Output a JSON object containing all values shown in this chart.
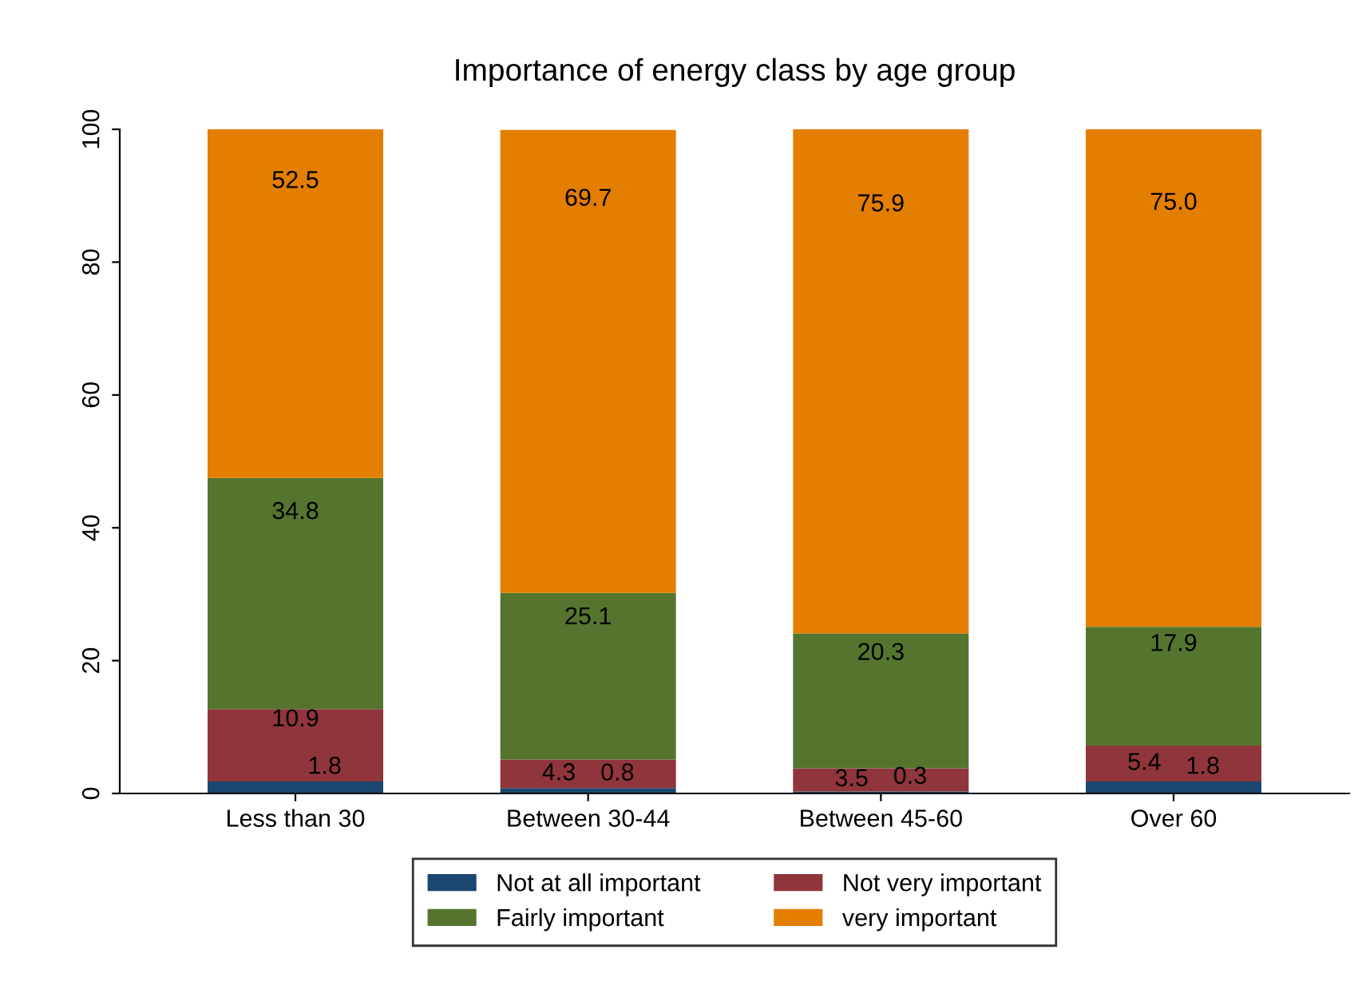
{
  "chart_data": {
    "type": "bar",
    "stacked": true,
    "title": "Importance of energy class by age group",
    "categories": [
      "Less than 30",
      "Between 30-44",
      "Between 45-60",
      "Over 60"
    ],
    "series": [
      {
        "name": "Not at all important",
        "color": "#1a476f",
        "values": [
          1.8,
          0.8,
          0.3,
          1.8
        ],
        "value_labels": [
          "1.8",
          "0.8",
          "0.3",
          "1.8"
        ]
      },
      {
        "name": "Not very important",
        "color": "#90353b",
        "values": [
          10.9,
          4.3,
          3.5,
          5.4
        ],
        "value_labels": [
          "10.9",
          "4.3",
          "3.5",
          "5.4"
        ]
      },
      {
        "name": "Fairly important",
        "color": "#55752f",
        "values": [
          34.8,
          25.1,
          20.3,
          17.9
        ],
        "value_labels": [
          "34.8",
          "25.1",
          "20.3",
          "17.9"
        ]
      },
      {
        "name": "very important",
        "color": "#e37e00",
        "values": [
          52.5,
          69.7,
          75.9,
          75.0
        ],
        "value_labels": [
          "52.5",
          "69.7",
          "75.9",
          "75.0"
        ]
      }
    ],
    "ylim": [
      0,
      100
    ],
    "yticks": [
      0,
      20,
      40,
      60,
      80,
      100
    ],
    "grid": false,
    "legend": "bottom"
  }
}
